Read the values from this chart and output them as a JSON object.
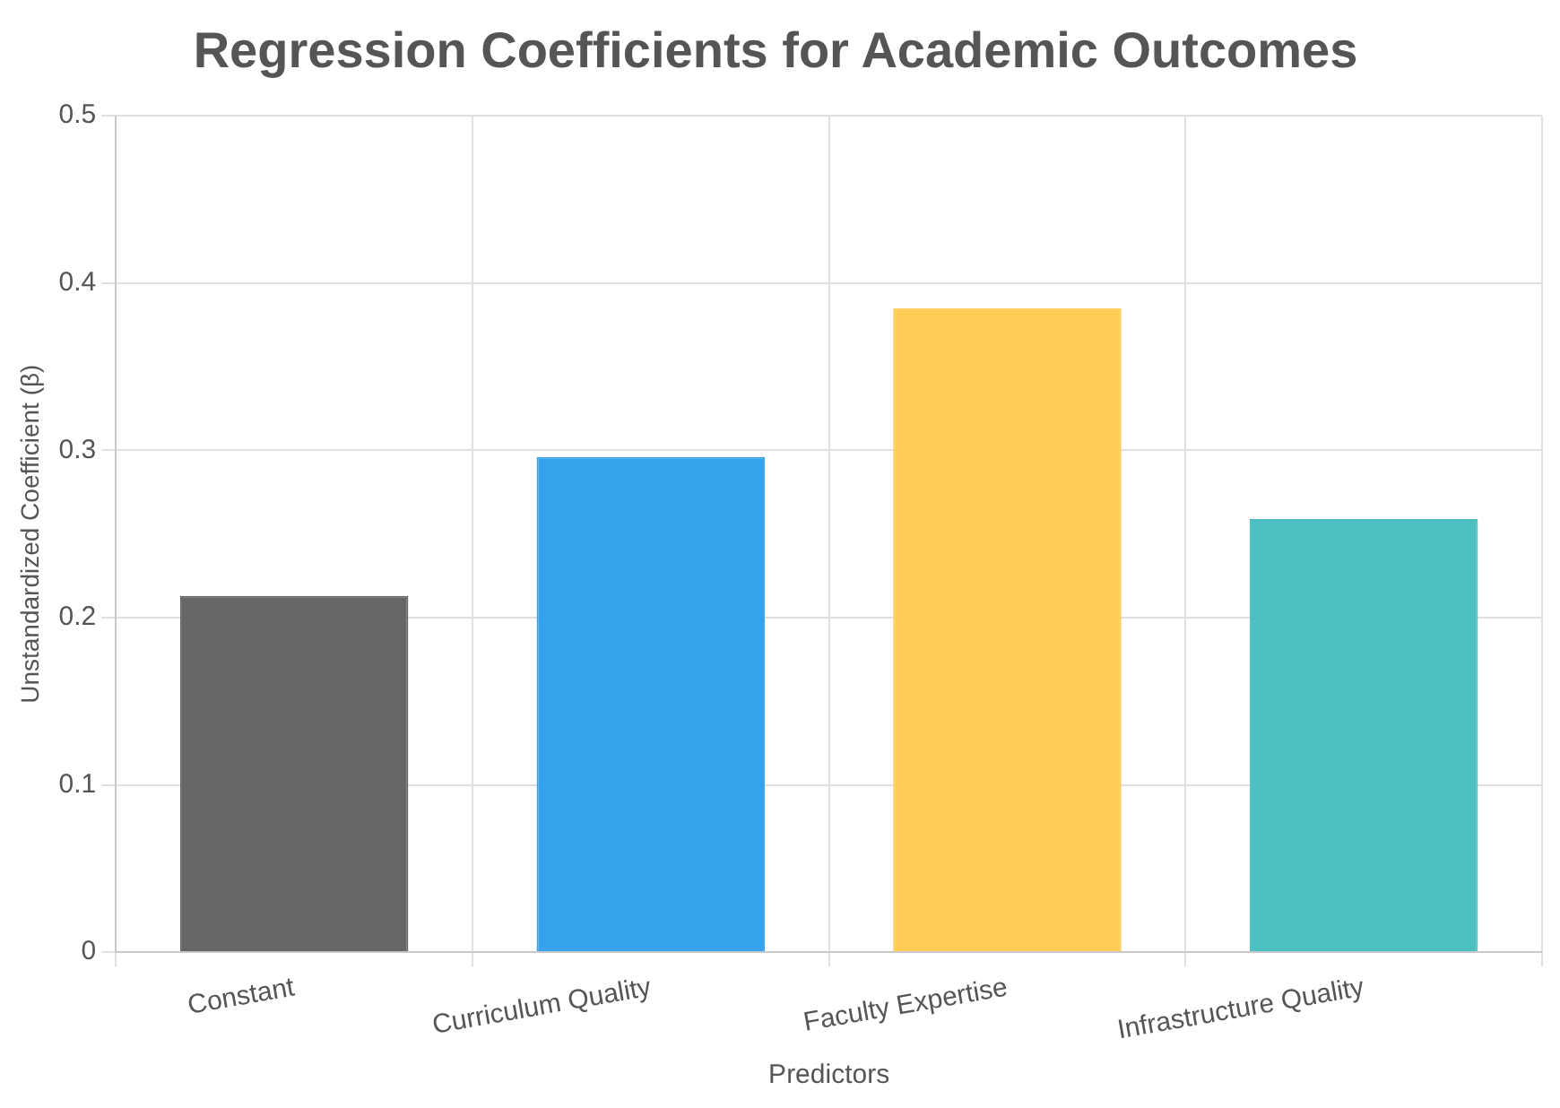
{
  "chart_data": {
    "type": "bar",
    "title": "Regression Coefficients for Academic Outcomes",
    "xlabel": "Predictors",
    "ylabel": "Unstandardized Coefficient (β)",
    "categories": [
      "Constant",
      "Curriculum Quality",
      "Faculty Expertise",
      "Infrastructure Quality"
    ],
    "values": [
      0.213,
      0.296,
      0.385,
      0.259
    ],
    "colors": [
      "#666666",
      "#36a2eb",
      "#ffcd56",
      "#4bc0c0"
    ],
    "ylim": [
      0,
      0.5
    ],
    "yticks": [
      0,
      0.1,
      0.2,
      0.3,
      0.4,
      0.5
    ],
    "grid": true,
    "legend": false
  }
}
